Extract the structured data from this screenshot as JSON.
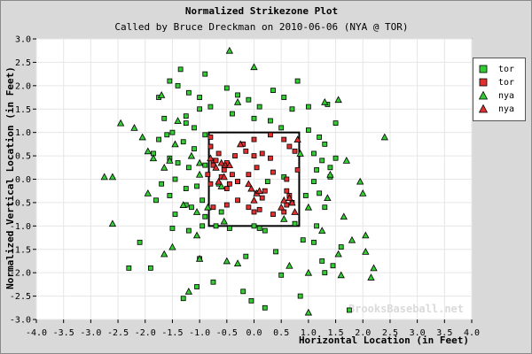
{
  "chart_data": {
    "type": "scatter",
    "title": "Normalized Strikezone Plot",
    "subtitle": "Called by Bruce Dreckman on 2010-06-06 (NYA @ TOR)",
    "xlabel": "Horizontal Location (in Feet)",
    "ylabel": "Normalized Vertical Location (in Feet)",
    "xlim": [
      -4.0,
      4.0
    ],
    "ylim": [
      -3.0,
      3.0
    ],
    "xticks": [
      -4.0,
      -3.5,
      -3.0,
      -2.5,
      -2.0,
      -1.5,
      -1.0,
      -0.5,
      0.0,
      0.5,
      1.0,
      1.5,
      2.0,
      2.5,
      3.0,
      3.5,
      4.0
    ],
    "xtick_labels": [
      "-4.0",
      "-3.5",
      "-3.0",
      "-2.5",
      "-2.0",
      "-1.5",
      "-1.0",
      "-0.5",
      "0.0",
      "0.5",
      "1.0",
      "1.5",
      "2.0",
      "2.5",
      "3.0",
      "3.5",
      "4.0"
    ],
    "yticks": [
      3.0,
      2.5,
      2.0,
      1.5,
      1.0,
      0.5,
      0.0,
      -0.5,
      -1.0,
      -1.5,
      -2.0,
      -2.5,
      -3.0
    ],
    "ytick_labels": [
      "3.0",
      "2.5",
      "2.0",
      "1.5",
      "1.0",
      "0.5",
      "0.0",
      "-0.5",
      "-1.0",
      "-1.5",
      "-2.0",
      "-2.5",
      "-3.0"
    ],
    "grid": true,
    "legend_position": "right-top",
    "strike_zone": {
      "x": [
        -0.83,
        0.83
      ],
      "y": [
        -1.0,
        1.0
      ]
    },
    "watermark": "BrooksBaseball.net",
    "series": [
      {
        "name": "tor",
        "marker": "square",
        "color": "#33cc33",
        "x": [
          -1.55,
          -1.35,
          -1.4,
          -0.9,
          -1.2,
          -1.0,
          -0.5,
          -0.3,
          -0.1,
          0.1,
          0.35,
          0.55,
          0.8,
          1.0,
          1.35,
          1.5,
          -1.75,
          -1.65,
          -1.25,
          -1.0,
          -0.8,
          -0.4,
          0.0,
          0.3,
          0.5,
          0.7,
          -1.5,
          -1.25,
          -1.1,
          -0.9,
          1.0,
          1.2,
          -1.75,
          -1.6,
          -1.3,
          -1.1,
          -0.8,
          1.3,
          1.1,
          1.25,
          1.5,
          -1.85,
          -1.55,
          -1.4,
          -1.2,
          -0.9,
          1.15,
          1.4,
          -1.7,
          -1.45,
          -1.25,
          -1.05,
          -0.65,
          -0.3,
          0.25,
          0.55,
          1.1,
          1.4,
          -1.8,
          -1.55,
          -1.25,
          -0.95,
          0.95,
          1.2,
          -1.45,
          -1.15,
          -0.9,
          1.3,
          -1.5,
          -1.2,
          -0.95,
          -0.7,
          -0.45,
          0.1,
          0.75,
          1.15,
          -0.6,
          0.0,
          0.2,
          0.9,
          1.6,
          1.1,
          0.4,
          -1.9,
          -2.1,
          -1.0,
          -0.15,
          1.25,
          1.45,
          -1.05,
          -0.75,
          -0.2,
          0.5,
          0.85,
          1.3,
          -1.3,
          -0.05,
          0.2,
          -2.3,
          1.75
        ],
        "y": [
          2.1,
          2.35,
          2.0,
          2.25,
          1.85,
          1.75,
          1.95,
          1.8,
          1.7,
          1.55,
          1.9,
          1.75,
          2.1,
          1.55,
          1.6,
          1.2,
          1.75,
          1.3,
          1.35,
          1.5,
          1.55,
          1.4,
          1.3,
          1.25,
          1.1,
          1.5,
          1.0,
          1.2,
          1.1,
          0.95,
          1.05,
          0.9,
          0.85,
          0.95,
          0.8,
          0.65,
          0.7,
          0.75,
          0.55,
          0.4,
          0.45,
          0.55,
          0.45,
          0.35,
          0.25,
          0.3,
          0.2,
          0.25,
          -0.1,
          0.0,
          -0.2,
          -0.15,
          -0.1,
          -0.05,
          -0.05,
          0.05,
          -0.05,
          0.05,
          -0.45,
          -0.35,
          -0.55,
          -0.45,
          -0.35,
          -0.3,
          -0.75,
          -0.6,
          -0.8,
          -0.6,
          -1.05,
          -1.1,
          -1.0,
          -1.0,
          -1.05,
          -1.05,
          -0.95,
          -1.0,
          -0.7,
          -1.0,
          -1.1,
          -1.3,
          -1.45,
          -1.35,
          -1.55,
          -1.9,
          -1.35,
          -1.7,
          -1.65,
          -1.75,
          -1.85,
          -2.3,
          -2.2,
          -2.4,
          -2.05,
          -2.5,
          -2.0,
          -2.55,
          -2.6,
          -2.75,
          -1.9,
          -2.8
        ]
      },
      {
        "name": "tor",
        "marker": "square",
        "color": "#e03030",
        "x": [
          -0.8,
          -0.8,
          -0.65,
          -0.75,
          -0.5,
          -0.55,
          -0.4,
          -0.2,
          -0.15,
          0.0,
          0.15,
          0.3,
          0.55,
          0.65,
          0.75,
          -0.75,
          -0.6,
          -0.8,
          -0.5,
          -0.3,
          -0.1,
          0.05,
          0.2,
          0.35,
          0.6,
          -0.75,
          -0.5,
          -0.3,
          -0.1,
          0.0,
          0.1,
          0.35,
          0.55,
          0.6,
          0.7,
          -0.7,
          -0.55,
          -0.35,
          0.0,
          0.3,
          -0.85,
          -0.45,
          0.15,
          0.65,
          0.8,
          0.05,
          0.6
        ],
        "y": [
          0.9,
          0.7,
          0.55,
          0.4,
          0.35,
          0.2,
          0.1,
          0.75,
          0.6,
          0.5,
          0.55,
          0.45,
          0.85,
          0.7,
          0.6,
          0.3,
          0.05,
          -0.1,
          -0.2,
          -0.05,
          0.1,
          0.25,
          -0.25,
          0.15,
          0.0,
          -0.6,
          -0.55,
          -0.45,
          -0.6,
          -0.7,
          -0.65,
          -0.75,
          -0.7,
          -0.55,
          -0.5,
          0.4,
          0.3,
          0.5,
          0.85,
          0.95,
          0.1,
          -0.1,
          -0.4,
          -0.35,
          0.2,
          -0.3,
          -0.25
        ]
      },
      {
        "name": "nya",
        "marker": "triangle",
        "color": "#33cc33",
        "x": [
          -0.45,
          0.0,
          -0.3,
          -1.7,
          -1.4,
          -2.45,
          -2.2,
          -2.05,
          -2.6,
          -1.65,
          -1.15,
          -1.85,
          -1.95,
          -1.45,
          -1.0,
          -0.6,
          -0.85,
          0.85,
          1.3,
          1.55,
          1.7,
          1.95,
          2.0,
          1.65,
          2.4,
          1.4,
          1.35,
          1.0,
          -2.6,
          -2.75,
          -1.55,
          -1.05,
          -0.55,
          0.55,
          1.25,
          1.8,
          2.05,
          2.05,
          2.2,
          1.55,
          -1.65,
          -1.0,
          -0.5,
          -0.3,
          0.65,
          1.0,
          1.6,
          2.15,
          -1.2,
          -1.3,
          -1.0,
          -1.95,
          -1.5,
          -1.05,
          1.0
        ],
        "y": [
          2.75,
          2.4,
          1.65,
          1.8,
          1.25,
          1.2,
          1.1,
          0.9,
          0.05,
          0.25,
          0.5,
          0.45,
          0.6,
          0.75,
          0.35,
          -0.15,
          -0.6,
          0.55,
          1.65,
          1.7,
          0.4,
          -0.05,
          -0.3,
          -0.8,
          0.9,
          0.1,
          -0.4,
          -0.6,
          -0.95,
          0.05,
          0.4,
          -0.7,
          -0.9,
          -0.85,
          -1.1,
          -1.3,
          -1.55,
          -1.2,
          -1.9,
          -1.6,
          -1.6,
          -1.7,
          -1.75,
          -1.8,
          -1.85,
          -2.0,
          -2.05,
          -2.1,
          -2.4,
          -0.55,
          0.1,
          -0.3,
          -1.45,
          -1.2,
          -2.85
        ]
      },
      {
        "name": "nya",
        "marker": "triangle",
        "color": "#e03030",
        "x": [
          -0.8,
          -0.7,
          -0.6,
          -0.55,
          -0.45,
          -0.65,
          -0.25,
          -0.05,
          0.05,
          0.0,
          0.1,
          -0.1,
          0.5,
          0.55,
          0.7,
          0.65,
          0.75,
          0.8
        ],
        "y": [
          0.45,
          0.25,
          0.35,
          0.05,
          0.3,
          -0.05,
          0.75,
          -0.2,
          -0.3,
          -0.45,
          -0.25,
          -0.1,
          -0.6,
          -0.45,
          -0.5,
          -0.4,
          -0.7,
          0.85
        ]
      }
    ]
  }
}
